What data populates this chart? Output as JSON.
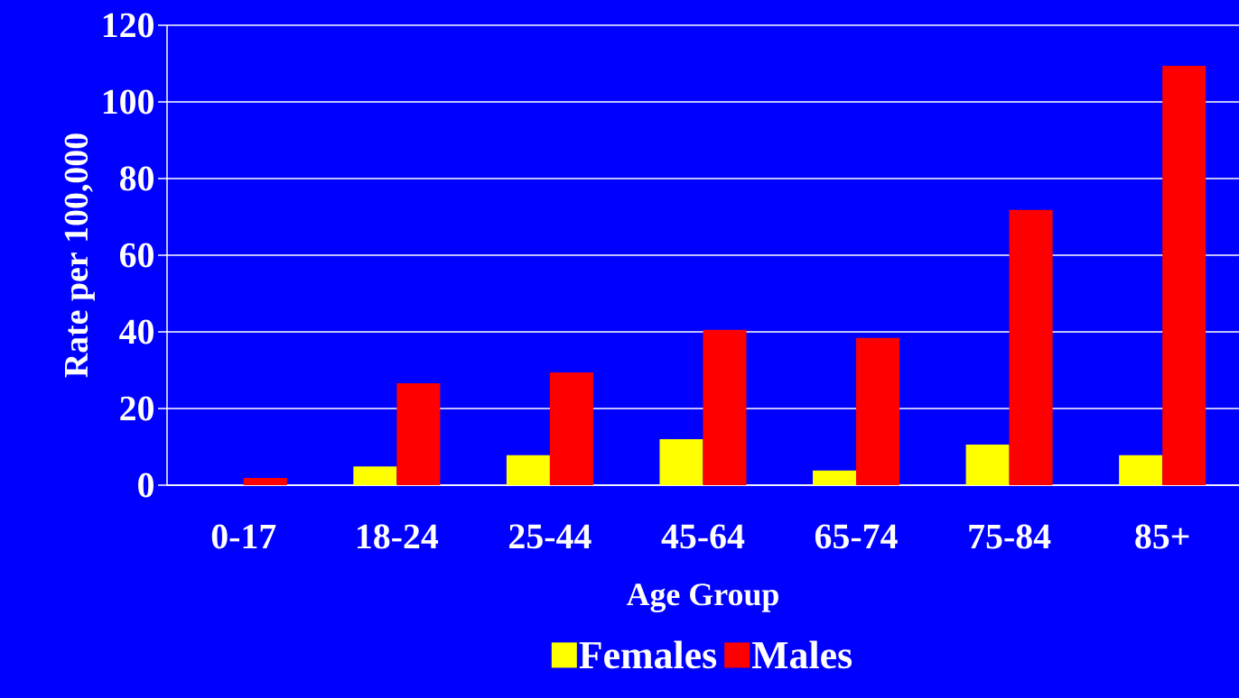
{
  "chart_data": {
    "type": "bar",
    "xlabel": "Age Group",
    "ylabel": "Rate per 100,000",
    "categories": [
      "0-17",
      "18-24",
      "25-44",
      "45-64",
      "65-74",
      "75-84",
      "85+"
    ],
    "series": [
      {
        "name": "Females",
        "color": "#ffff00",
        "values": [
          0,
          4.9,
          7.8,
          12,
          3.8,
          10.6,
          7.8
        ]
      },
      {
        "name": "Males",
        "color": "#ff0000",
        "values": [
          1.9,
          26.6,
          29.4,
          40.5,
          38.4,
          71.8,
          109.4
        ]
      }
    ],
    "ylim": [
      0,
      120
    ],
    "yticks": [
      0,
      20,
      40,
      60,
      80,
      100,
      120
    ],
    "grid": "y",
    "legend": "bottom"
  }
}
